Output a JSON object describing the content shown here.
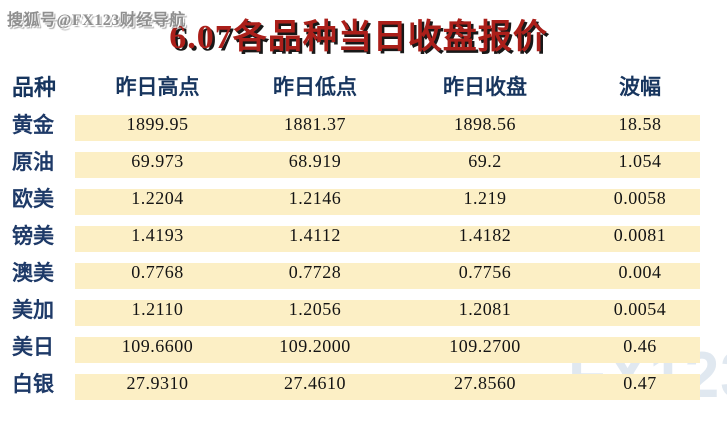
{
  "page": {
    "top_watermark": "搜狐号@FX123财经导航",
    "bottom_watermark": "FX123"
  },
  "colors": {
    "row_band": "#FCEFC5",
    "label_navy": "#1E3A68",
    "header_navy": "#17355E",
    "title_red": "#AB1F1A",
    "value_text": "#141414",
    "fx_watermark": "#D9E3ED",
    "background": "#FFFFFF"
  },
  "chart_data": {
    "type": "table",
    "title": "6.07各品种当日收盘报价",
    "columns": [
      "品种",
      "昨日高点",
      "昨日低点",
      "昨日收盘",
      "波幅"
    ],
    "rows": [
      {
        "label": "黄金",
        "high": "1899.95",
        "low": "1881.37",
        "close": "1898.56",
        "range": "18.58"
      },
      {
        "label": "原油",
        "high": "69.973",
        "low": "68.919",
        "close": "69.2",
        "range": "1.054"
      },
      {
        "label": "欧美",
        "high": "1.2204",
        "low": "1.2146",
        "close": "1.219",
        "range": "0.0058"
      },
      {
        "label": "镑美",
        "high": "1.4193",
        "low": "1.4112",
        "close": "1.4182",
        "range": "0.0081"
      },
      {
        "label": "澳美",
        "high": "0.7768",
        "low": "0.7728",
        "close": "0.7756",
        "range": "0.004"
      },
      {
        "label": "美加",
        "high": "1.2110",
        "low": "1.2056",
        "close": "1.2081",
        "range": "0.0054"
      },
      {
        "label": "美日",
        "high": "109.6600",
        "low": "109.2000",
        "close": "109.2700",
        "range": "0.46"
      },
      {
        "label": "白银",
        "high": "27.9310",
        "low": "27.4610",
        "close": "27.8560",
        "range": "0.47"
      }
    ]
  }
}
